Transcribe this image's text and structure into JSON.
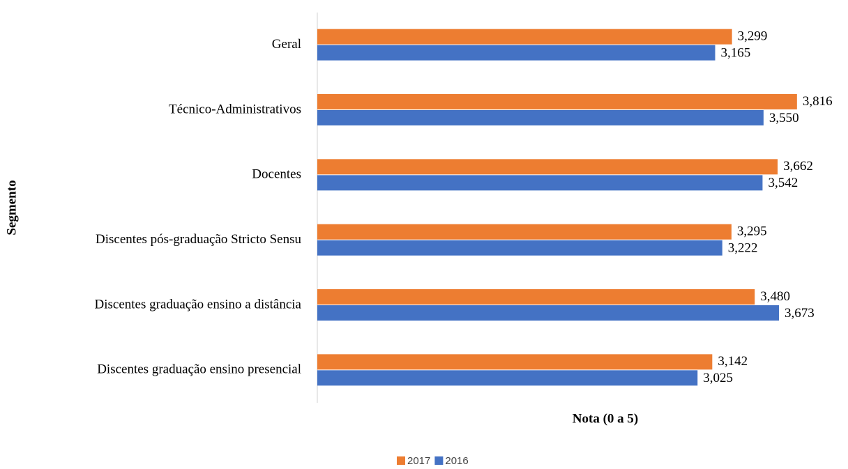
{
  "chart_data": {
    "type": "bar",
    "orientation": "horizontal",
    "xlabel": "Nota  (0 a 5)",
    "ylabel": "Segmento",
    "categories": [
      "Geral",
      "Técnico-Administrativos",
      "Docentes",
      "Discentes pós-graduação Stricto Sensu",
      "Discentes graduação ensino a distância",
      "Discentes graduação ensino presencial"
    ],
    "series": [
      {
        "name": "2017",
        "color": "#ed7d31",
        "values": [
          3.299,
          3.816,
          3.662,
          3.295,
          3.48,
          3.142
        ],
        "value_labels": [
          "3,299",
          "3,816",
          "3,662",
          "3,295",
          "3,480",
          "3,142"
        ]
      },
      {
        "name": "2016",
        "color": "#4472c4",
        "values": [
          3.165,
          3.55,
          3.542,
          3.222,
          3.673,
          3.025
        ],
        "value_labels": [
          "3,165",
          "3,550",
          "3,542",
          "3,222",
          "3,673",
          "3,025"
        ]
      }
    ],
    "xlim": [
      0,
      4
    ],
    "legend": "bottom",
    "grid": false
  }
}
